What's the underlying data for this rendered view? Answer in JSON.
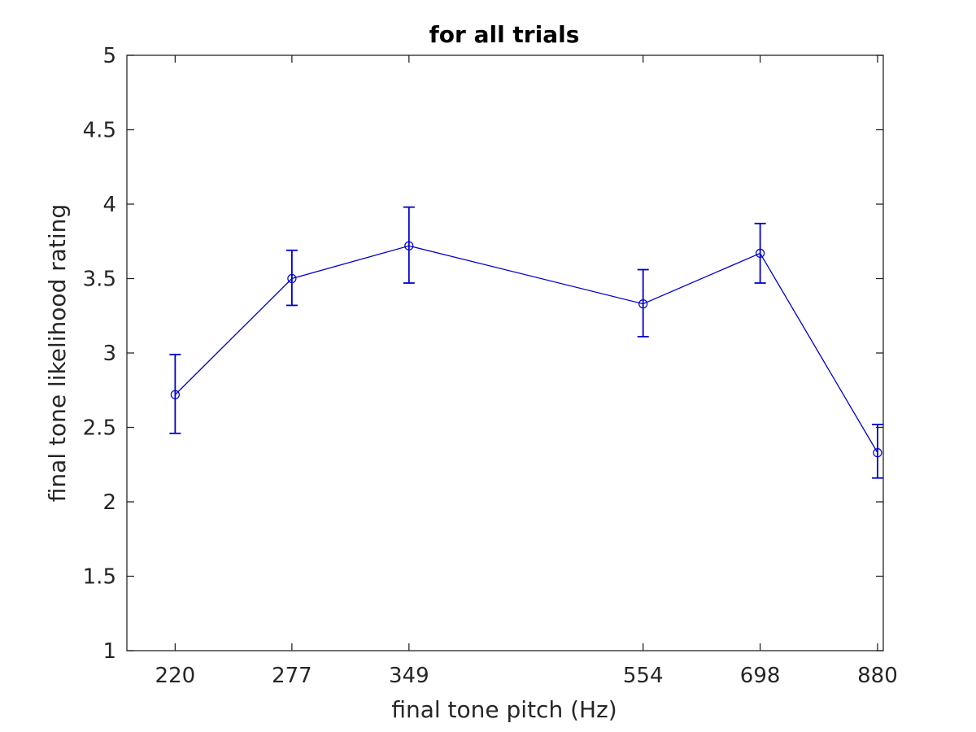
{
  "chart_data": {
    "type": "line",
    "title": "for all trials",
    "xlabel": "final tone pitch (Hz)",
    "ylabel": "final tone likelihood rating",
    "x_scale": "log",
    "x": [
      220,
      277,
      349,
      554,
      698,
      880
    ],
    "x_tick_labels": [
      "220",
      "277",
      "349",
      "554",
      "698",
      "880"
    ],
    "xlim": [
      200,
      890
    ],
    "ylim": [
      1,
      5
    ],
    "y_ticks": [
      1,
      1.5,
      2,
      2.5,
      3,
      3.5,
      4,
      4.5,
      5
    ],
    "y_tick_labels": [
      "1",
      "1.5",
      "2",
      "2.5",
      "3",
      "3.5",
      "4",
      "4.5",
      "5"
    ],
    "grid": false,
    "series": [
      {
        "values": [
          2.72,
          3.5,
          3.72,
          3.33,
          3.67,
          2.33
        ],
        "error_low": [
          2.46,
          3.32,
          3.47,
          3.11,
          3.47,
          2.16
        ],
        "error_high": [
          2.99,
          3.69,
          3.98,
          3.56,
          3.87,
          2.52
        ],
        "color": "#0000cc",
        "marker": "circle"
      }
    ]
  }
}
